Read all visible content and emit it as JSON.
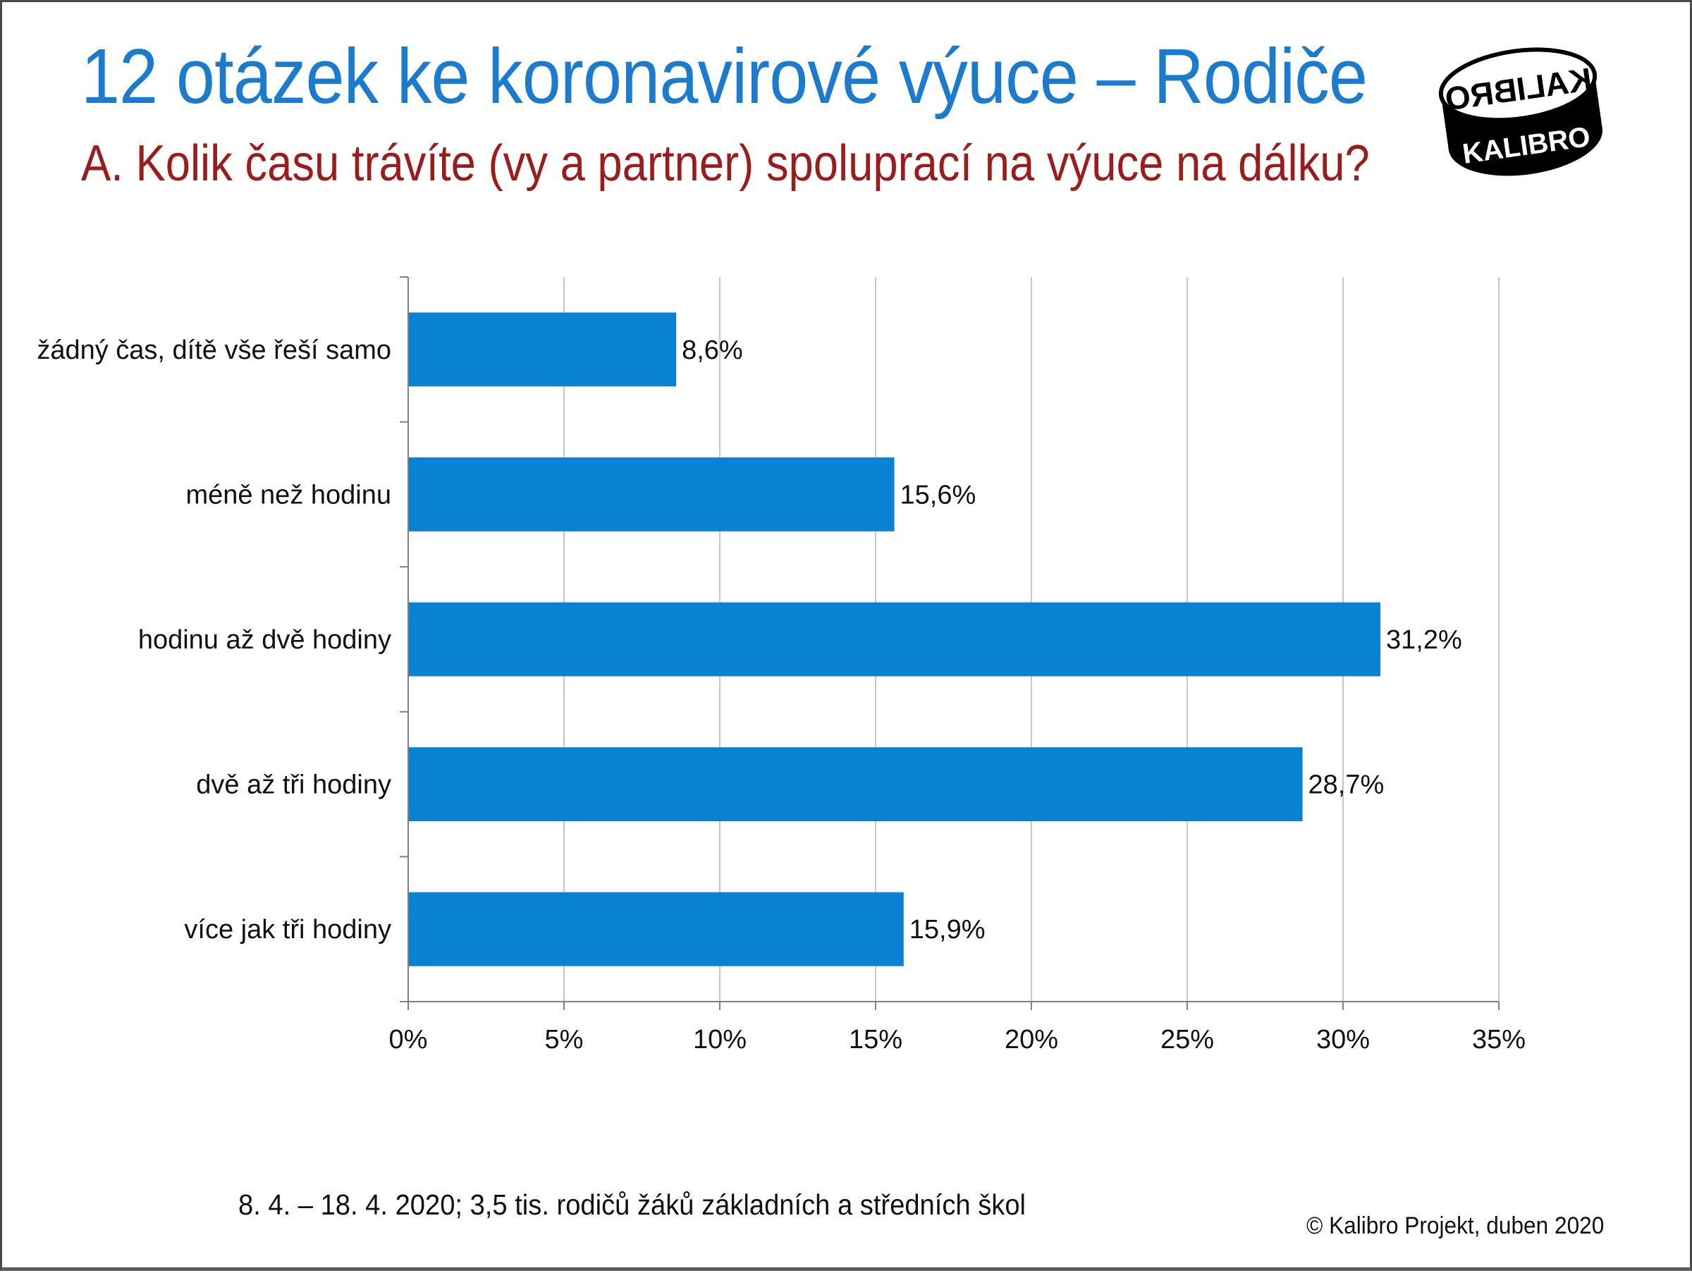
{
  "header": {
    "title": "12 otázek ke koronavirové výuce – Rodiče",
    "subtitle": "A. Kolik času trávíte (vy a partner) spoluprací na výuce na dálku?"
  },
  "logo": {
    "text_top": "KALIBRO",
    "text_bottom": "KALIBRO"
  },
  "chart_data": {
    "type": "bar",
    "orientation": "horizontal",
    "categories": [
      "žádný čas, dítě vše řeší samo",
      "méně než hodinu",
      "hodinu až dvě hodiny",
      "dvě až tři hodiny",
      "více jak tři hodiny"
    ],
    "values": [
      8.6,
      15.6,
      31.2,
      28.7,
      15.9
    ],
    "data_labels": [
      "8,6%",
      "15,6%",
      "31,2%",
      "28,7%",
      "15,9%"
    ],
    "x_ticks": [
      "0%",
      "5%",
      "10%",
      "15%",
      "20%",
      "25%",
      "30%",
      "35%"
    ],
    "xlim": [
      0,
      35
    ],
    "grid": true,
    "legend": "none",
    "colors": {
      "bar": "#0a82d4",
      "grid": "#c8c8c8",
      "axis": "#808080"
    },
    "title": "",
    "xlabel": "",
    "ylabel": ""
  },
  "footer": {
    "source_note": "8. 4. – 18. 4. 2020; 3,5 tis. rodičů žáků základních a středních škol",
    "copyright": "© Kalibro Projekt, duben 2020"
  }
}
